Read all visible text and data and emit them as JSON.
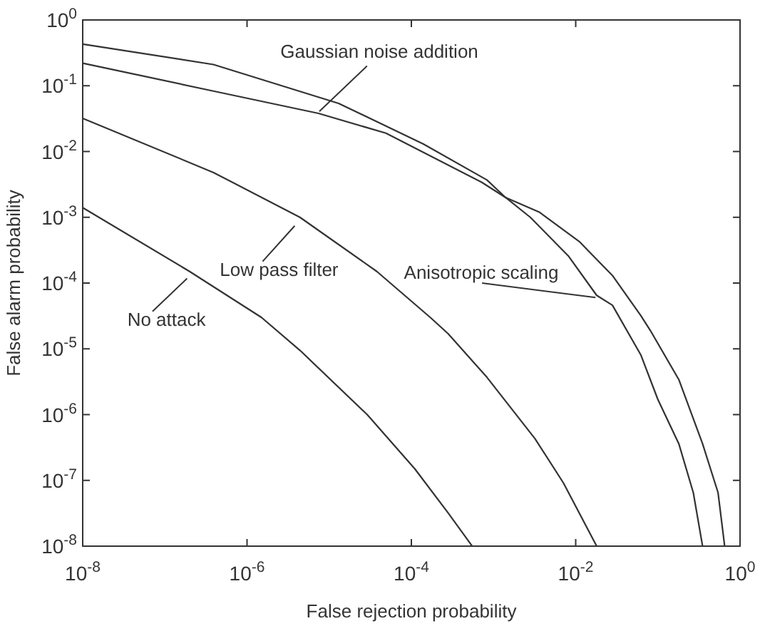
{
  "chart_data": {
    "type": "line",
    "xlabel": "False rejection probability",
    "ylabel": "False alarm probability",
    "log": "xy",
    "grid": false,
    "legend": "top left",
    "marker": "none",
    "line_style": "solid",
    "xlim": [
      1e-08,
      1
    ],
    "ylim": [
      1e-08,
      1
    ],
    "xticks": [
      {
        "value": 1e-08,
        "label": "10$^{-8}$"
      },
      {
        "value": 1e-06,
        "label": "10$^{-6}$"
      },
      {
        "value": 0.0001,
        "label": "10$^{-4}$"
      },
      {
        "value": 0.01,
        "label": "10$^{-2}$"
      },
      {
        "value": 1,
        "label": "10$^{0}$"
      }
    ],
    "yticks": [
      {
        "value": 1e-08,
        "label": "10$^{-8}$"
      },
      {
        "value": 1e-07,
        "label": "10$^{-7}$"
      },
      {
        "value": 1e-06,
        "label": "10$^{-6}$"
      },
      {
        "value": 1e-05,
        "label": "10$^{-5}$"
      },
      {
        "value": 0.0001,
        "label": "10$^{-4}$"
      },
      {
        "value": 0.001,
        "label": "10$^{-3}$"
      },
      {
        "value": 0.01,
        "label": "10$^{-2}$"
      },
      {
        "value": 0.1,
        "label": "10$^{-1}$"
      },
      {
        "value": 1,
        "label": "10$^{0}$"
      }
    ],
    "series": [
      {
        "name": "Gaussian noise addition",
        "color": "#333333",
        "x": [
          1e-08,
          3.9e-07,
          7.4e-06,
          4.9e-05,
          0.00072,
          0.0014,
          0.0036,
          0.011,
          0.028,
          0.062,
          0.081,
          0.18,
          0.35,
          0.54,
          0.65
        ],
        "values": [
          0.22,
          0.083,
          0.038,
          0.019,
          0.0034,
          0.002,
          0.0012,
          0.00043,
          0.00013,
          3.2e-05,
          1.9e-05,
          3.4e-06,
          3.6e-07,
          6.5e-08,
          1e-08
        ]
      },
      {
        "name": "Anisotropic scaling",
        "color": "#333333",
        "x": [
          1e-08,
          3.9e-07,
          1.3e-05,
          0.00014,
          0.00083,
          0.0014,
          0.0028,
          0.0081,
          0.018,
          0.028,
          0.062,
          0.1,
          0.18,
          0.27,
          0.35
        ],
        "values": [
          0.43,
          0.21,
          0.054,
          0.013,
          0.0037,
          0.002,
          0.001,
          0.00026,
          6.5e-05,
          4.6e-05,
          8.1e-06,
          1.7e-06,
          3.6e-07,
          6.5e-08,
          1e-08
        ]
      },
      {
        "name": "Low pass filter",
        "color": "#333333",
        "x": [
          1e-08,
          3.9e-07,
          4.4e-06,
          3.8e-05,
          0.00017,
          0.00028,
          0.00083,
          0.0032,
          0.0071,
          0.018
        ],
        "values": [
          0.032,
          0.0048,
          0.001,
          0.00015,
          3e-05,
          1.7e-05,
          3.7e-06,
          4.3e-07,
          9.1e-08,
          1e-08
        ]
      },
      {
        "name": "No attack",
        "color": "#333333",
        "x": [
          1e-08,
          2e-07,
          1.5e-06,
          4.4e-06,
          2.9e-05,
          0.00011,
          0.00028,
          0.00055
        ],
        "values": [
          0.0014,
          0.00015,
          3e-05,
          9.5e-06,
          1e-06,
          1.5e-07,
          3.2e-08,
          1e-08
        ]
      }
    ]
  }
}
